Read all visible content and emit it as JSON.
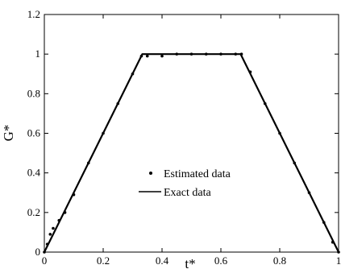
{
  "chart_data": {
    "type": "line",
    "title": "",
    "xlabel": "t*",
    "ylabel": "G*",
    "xlim": [
      0,
      1
    ],
    "ylim": [
      0,
      1.2
    ],
    "x_ticks": [
      "0",
      "0.2",
      "0.4",
      "0.6",
      "0.8",
      "1"
    ],
    "y_ticks": [
      "0",
      "0.2",
      "0.4",
      "0.6",
      "0.8",
      "1",
      "1.2"
    ],
    "grid": false,
    "legend_position": "center",
    "series": [
      {
        "name": "Exact data",
        "style": "solid-line",
        "color": "#000000",
        "x": [
          0,
          0.333,
          0.667,
          1
        ],
        "y": [
          0,
          1,
          1,
          0
        ]
      },
      {
        "name": "Estimated data",
        "style": "dots",
        "color": "#000000",
        "x": [
          0,
          0.01,
          0.02,
          0.03,
          0.05,
          0.07,
          0.1,
          0.15,
          0.2,
          0.25,
          0.3,
          0.33,
          0.35,
          0.4,
          0.45,
          0.5,
          0.55,
          0.6,
          0.65,
          0.67,
          0.7,
          0.75,
          0.8,
          0.85,
          0.9,
          0.95,
          0.98,
          1
        ],
        "y": [
          0,
          0.04,
          0.09,
          0.12,
          0.16,
          0.2,
          0.29,
          0.45,
          0.6,
          0.75,
          0.9,
          0.99,
          0.99,
          0.99,
          1.0,
          1.0,
          1.0,
          1.0,
          1.0,
          1.0,
          0.91,
          0.75,
          0.6,
          0.45,
          0.3,
          0.15,
          0.05,
          0
        ]
      }
    ]
  }
}
